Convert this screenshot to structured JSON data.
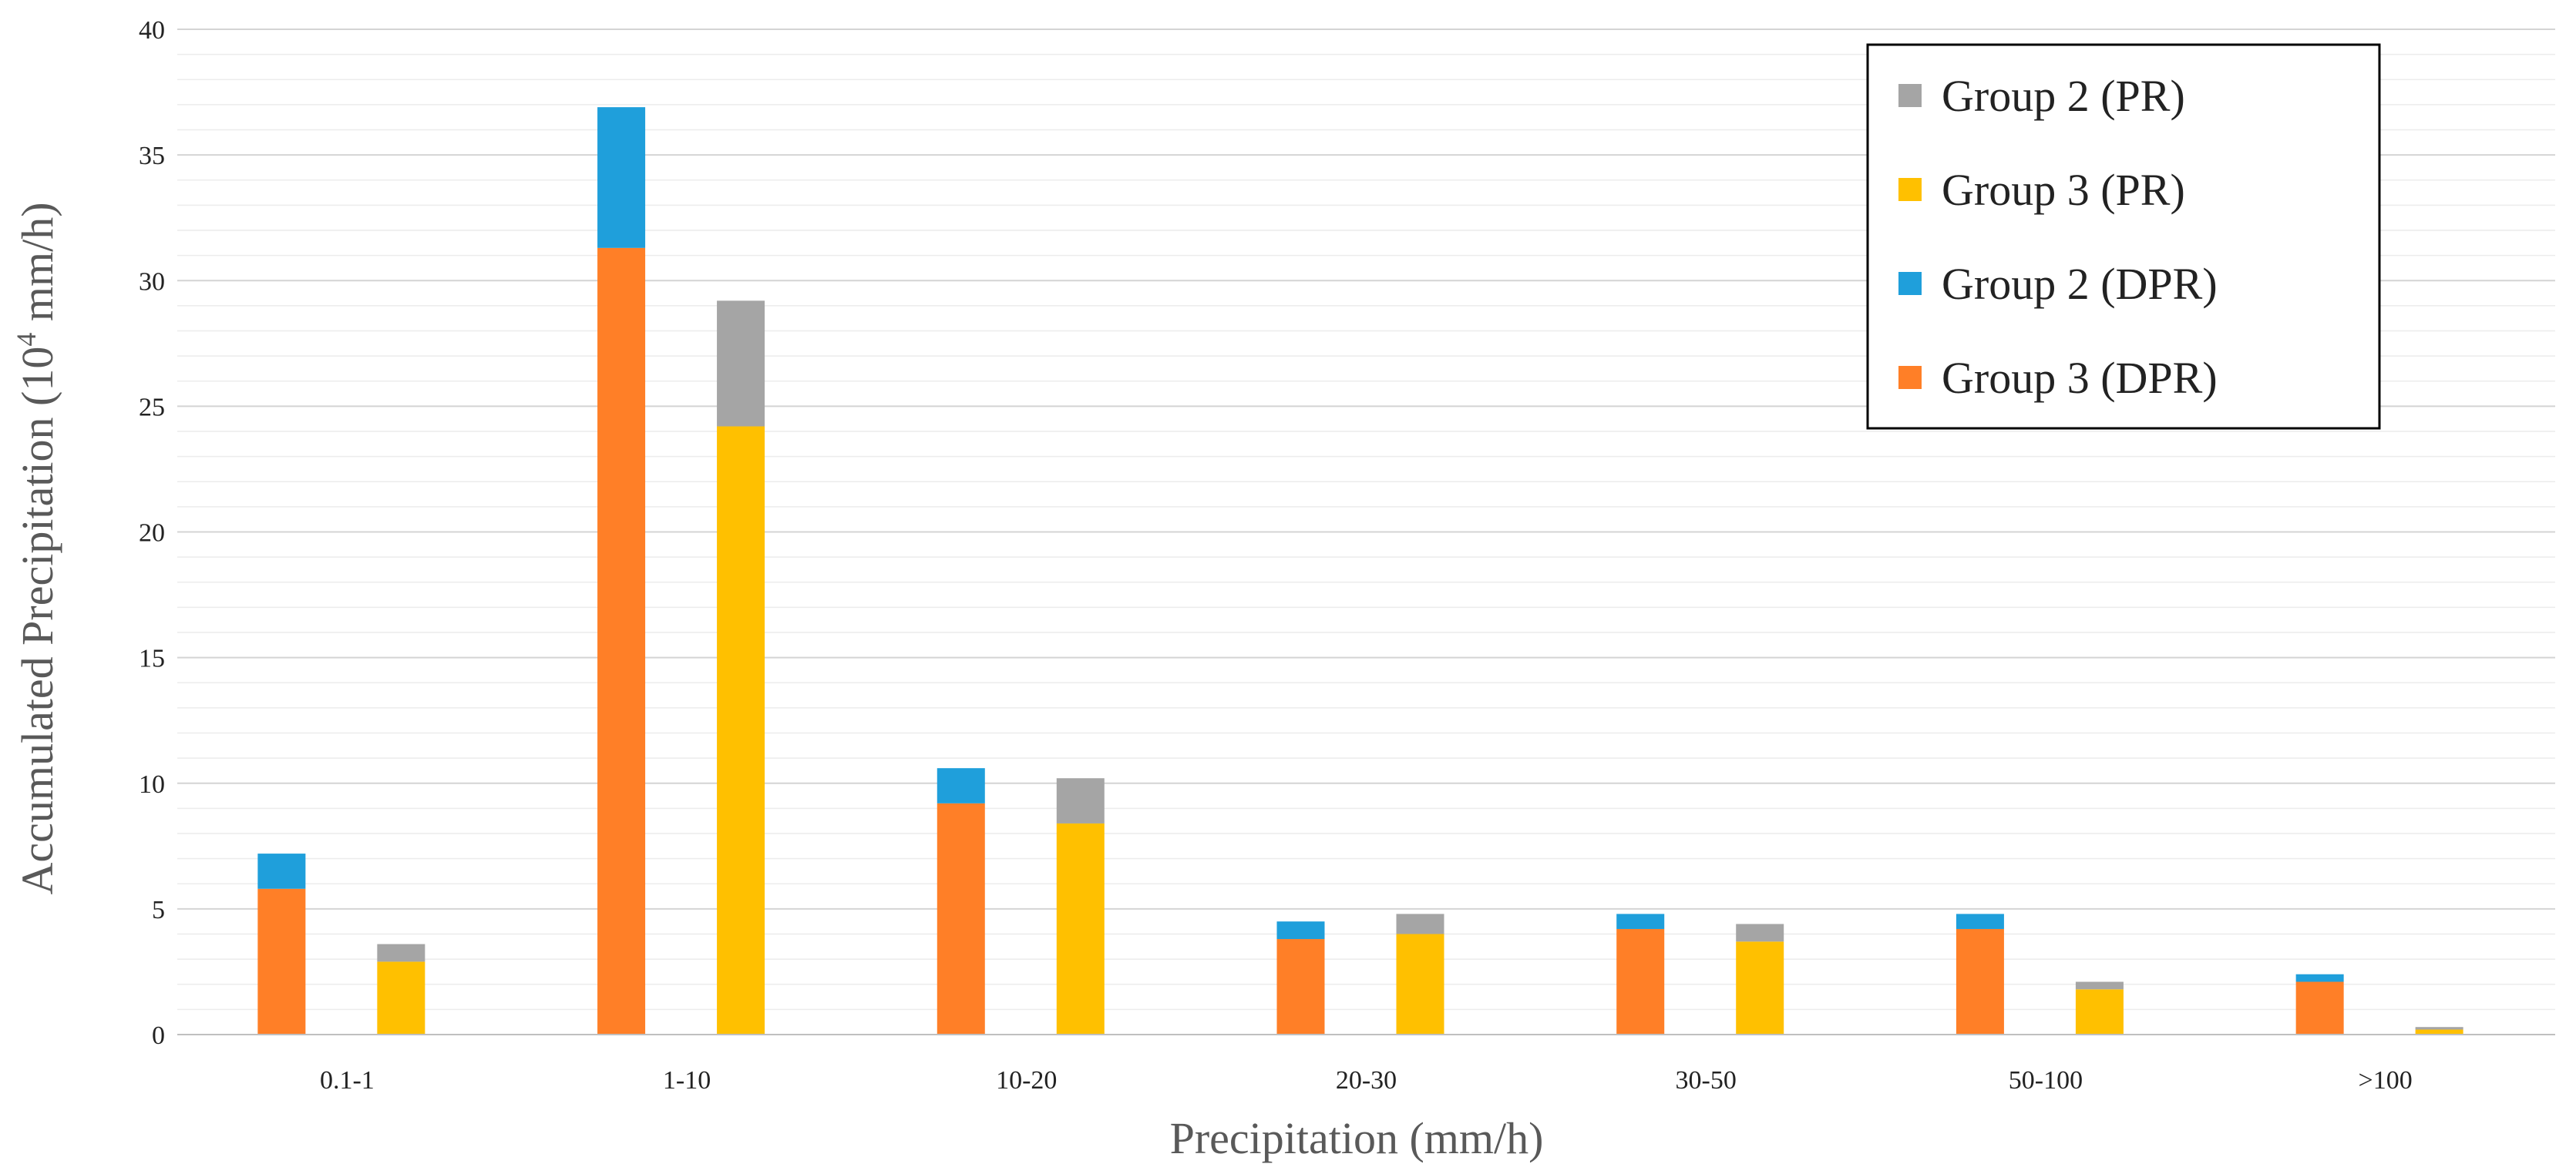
{
  "chart_data": {
    "type": "bar",
    "subtype": "stacked-grouped",
    "title": "",
    "xlabel": "Precipitation (mm/h)",
    "ylabel_main": "Accumulated Precipitation (10",
    "ylabel_sup": "4",
    "ylabel_tail": " mm/h)",
    "ylim": [
      0,
      40
    ],
    "yticks": [
      0,
      5,
      10,
      15,
      20,
      25,
      30,
      35,
      40
    ],
    "grid": true,
    "legend_position": "top-right",
    "categories": [
      "0.1-1",
      "1-10",
      "10-20",
      "20-30",
      "30-50",
      "50-100",
      ">100"
    ],
    "stacks": [
      {
        "name": "DPR",
        "series": [
          {
            "name": "Group 3 (DPR)",
            "color": "#FF7F27",
            "values": [
              5.8,
              31.3,
              9.2,
              3.8,
              4.2,
              4.2,
              2.1
            ]
          },
          {
            "name": "Group 2 (DPR)",
            "color": "#1F9FDB",
            "values": [
              1.4,
              5.6,
              1.4,
              0.7,
              0.6,
              0.6,
              0.3
            ]
          }
        ]
      },
      {
        "name": "PR",
        "series": [
          {
            "name": "Group 3 (PR)",
            "color": "#FFC000",
            "values": [
              2.9,
              24.2,
              8.4,
              4.0,
              3.7,
              1.8,
              0.2
            ]
          },
          {
            "name": "Group 2 (PR)",
            "color": "#A5A5A5",
            "values": [
              0.7,
              5.0,
              1.8,
              0.8,
              0.7,
              0.3,
              0.1
            ]
          }
        ]
      }
    ],
    "legend": [
      {
        "label": "Group 2 (PR)",
        "color": "#A5A5A5"
      },
      {
        "label": "Group 3 (PR)",
        "color": "#FFC000"
      },
      {
        "label": "Group 2 (DPR)",
        "color": "#1F9FDB"
      },
      {
        "label": "Group 3 (DPR)",
        "color": "#FF7F27"
      }
    ]
  }
}
